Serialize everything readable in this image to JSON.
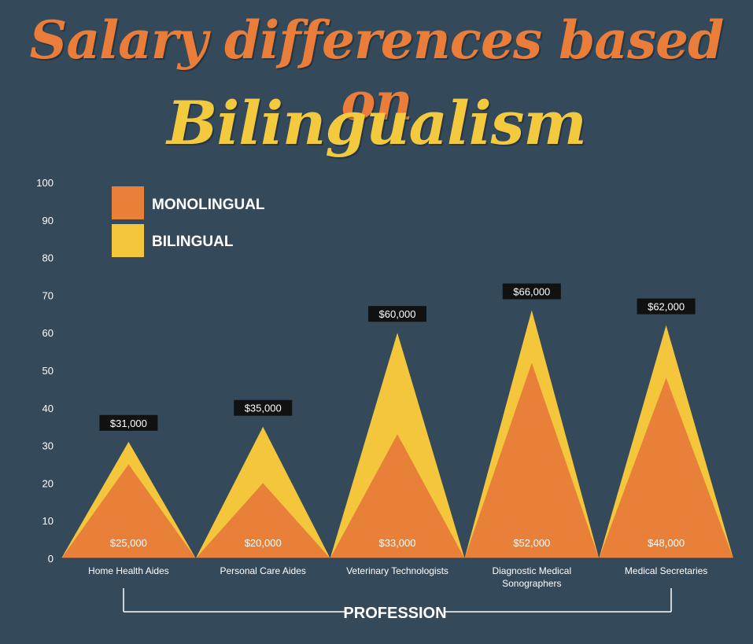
{
  "title_line1": "Salary differences based on",
  "title_line2": "Bilingualism",
  "colors": {
    "background": "#34495a",
    "monolingual": "#e9803a",
    "bilingual": "#f3c63c",
    "label_box": "#111111",
    "axis_text": "#ffffff"
  },
  "chart_data": {
    "type": "area",
    "categories": [
      "Home Health Aides",
      "Personal Care Aides",
      "Veterinary Technologists",
      "Diagnostic Medical Sonographers",
      "Medical Secretaries"
    ],
    "category_lines": [
      [
        "Home Health Aides"
      ],
      [
        "Personal Care Aides"
      ],
      [
        "Veterinary Technologists"
      ],
      [
        "Diagnostic Medical",
        "Sonographers"
      ],
      [
        "Medical Secretaries"
      ]
    ],
    "series": [
      {
        "name": "MONOLINGUAL",
        "values": [
          25,
          20,
          33,
          52,
          48
        ],
        "labels": [
          "$25,000",
          "$20,000",
          "$33,000",
          "$52,000",
          "$48,000"
        ]
      },
      {
        "name": "BILINGUAL",
        "values": [
          31,
          35,
          60,
          66,
          62
        ],
        "labels": [
          "$31,000",
          "$35,000",
          "$60,000",
          "$66,000",
          "$62,000"
        ]
      }
    ],
    "y_ticks": [
      "0",
      "10",
      "20",
      "30",
      "40",
      "50",
      "60",
      "70",
      "80",
      "90",
      "100"
    ],
    "ylim": [
      0,
      100
    ],
    "xlabel": "PROFESSION",
    "legend_position": "top-left",
    "grid": false
  }
}
